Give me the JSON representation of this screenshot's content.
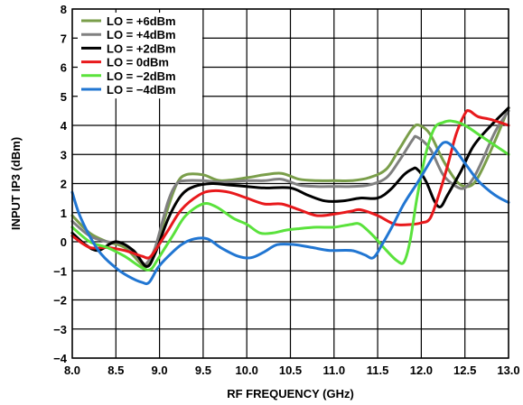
{
  "chart_data": {
    "type": "line",
    "title": "",
    "xlabel": "RF FREQUENCY (GHz)",
    "ylabel": "INPUT IP3 (dBm)",
    "xlim": [
      8.0,
      13.0
    ],
    "ylim": [
      -4,
      8
    ],
    "xticks": [
      "8.0",
      "8.5",
      "9.0",
      "9.5",
      "10.0",
      "10.5",
      "11.0",
      "11.5",
      "12.0",
      "12.5",
      "13.0"
    ],
    "yticks": [
      "−4",
      "−3",
      "−2",
      "−1",
      "0",
      "1",
      "2",
      "3",
      "4",
      "5",
      "6",
      "7",
      "8"
    ],
    "grid": true,
    "legend_position": "top-left",
    "series": [
      {
        "name": "LO = +6dBm",
        "color": "#7a9e4a",
        "points": [
          [
            8.0,
            0.9
          ],
          [
            8.2,
            0.3
          ],
          [
            8.4,
            0.0
          ],
          [
            8.6,
            -0.2
          ],
          [
            8.8,
            -0.8
          ],
          [
            8.85,
            -0.85
          ],
          [
            8.95,
            -0.3
          ],
          [
            9.1,
            1.2
          ],
          [
            9.2,
            2.0
          ],
          [
            9.3,
            2.3
          ],
          [
            9.5,
            2.3
          ],
          [
            9.7,
            2.1
          ],
          [
            10.0,
            2.2
          ],
          [
            10.2,
            2.3
          ],
          [
            10.4,
            2.35
          ],
          [
            10.6,
            2.15
          ],
          [
            10.8,
            2.1
          ],
          [
            11.0,
            2.1
          ],
          [
            11.2,
            2.1
          ],
          [
            11.4,
            2.2
          ],
          [
            11.6,
            2.5
          ],
          [
            11.75,
            3.2
          ],
          [
            11.9,
            3.9
          ],
          [
            11.98,
            4.0
          ],
          [
            12.1,
            3.7
          ],
          [
            12.25,
            2.8
          ],
          [
            12.4,
            2.1
          ],
          [
            12.5,
            1.9
          ],
          [
            12.6,
            2.0
          ],
          [
            12.7,
            2.5
          ],
          [
            12.85,
            3.5
          ],
          [
            13.0,
            4.6
          ]
        ]
      },
      {
        "name": "LO = +4dBm",
        "color": "#808080",
        "points": [
          [
            8.0,
            0.7
          ],
          [
            8.2,
            0.2
          ],
          [
            8.4,
            0.0
          ],
          [
            8.6,
            -0.1
          ],
          [
            8.8,
            -0.7
          ],
          [
            8.85,
            -0.75
          ],
          [
            8.95,
            -0.2
          ],
          [
            9.1,
            1.4
          ],
          [
            9.2,
            2.0
          ],
          [
            9.3,
            2.1
          ],
          [
            9.5,
            2.1
          ],
          [
            9.7,
            2.05
          ],
          [
            10.0,
            2.1
          ],
          [
            10.2,
            2.1
          ],
          [
            10.4,
            2.15
          ],
          [
            10.6,
            1.95
          ],
          [
            10.8,
            1.9
          ],
          [
            11.0,
            1.9
          ],
          [
            11.2,
            1.9
          ],
          [
            11.4,
            1.95
          ],
          [
            11.6,
            2.2
          ],
          [
            11.75,
            2.8
          ],
          [
            11.9,
            3.5
          ],
          [
            11.95,
            3.6
          ],
          [
            12.1,
            3.2
          ],
          [
            12.25,
            2.3
          ],
          [
            12.4,
            1.9
          ],
          [
            12.5,
            1.85
          ],
          [
            12.6,
            2.2
          ],
          [
            12.7,
            2.8
          ],
          [
            12.85,
            3.8
          ],
          [
            13.0,
            4.5
          ]
        ]
      },
      {
        "name": "LO = +2dBm",
        "color": "#000000",
        "points": [
          [
            8.0,
            0.3
          ],
          [
            8.15,
            -0.1
          ],
          [
            8.3,
            -0.3
          ],
          [
            8.5,
            0.0
          ],
          [
            8.7,
            -0.3
          ],
          [
            8.85,
            -0.85
          ],
          [
            8.95,
            -0.4
          ],
          [
            9.1,
            0.8
          ],
          [
            9.25,
            1.6
          ],
          [
            9.4,
            1.9
          ],
          [
            9.6,
            2.0
          ],
          [
            9.8,
            1.95
          ],
          [
            10.0,
            1.9
          ],
          [
            10.2,
            1.85
          ],
          [
            10.5,
            1.85
          ],
          [
            10.7,
            1.6
          ],
          [
            10.9,
            1.4
          ],
          [
            11.1,
            1.4
          ],
          [
            11.3,
            1.5
          ],
          [
            11.5,
            1.5
          ],
          [
            11.65,
            1.8
          ],
          [
            11.8,
            2.3
          ],
          [
            11.9,
            2.5
          ],
          [
            11.95,
            2.5
          ],
          [
            12.05,
            2.1
          ],
          [
            12.15,
            1.4
          ],
          [
            12.22,
            1.2
          ],
          [
            12.3,
            1.6
          ],
          [
            12.45,
            2.4
          ],
          [
            12.6,
            3.3
          ],
          [
            12.8,
            4.0
          ],
          [
            13.0,
            4.6
          ]
        ]
      },
      {
        "name": "LO = 0dBm",
        "color": "#e8191c",
        "points": [
          [
            8.0,
            0.2
          ],
          [
            8.2,
            -0.2
          ],
          [
            8.4,
            -0.2
          ],
          [
            8.6,
            -0.3
          ],
          [
            8.8,
            -0.5
          ],
          [
            8.88,
            -0.55
          ],
          [
            8.95,
            -0.3
          ],
          [
            9.1,
            0.4
          ],
          [
            9.25,
            1.1
          ],
          [
            9.45,
            1.6
          ],
          [
            9.6,
            1.75
          ],
          [
            9.8,
            1.7
          ],
          [
            10.0,
            1.5
          ],
          [
            10.2,
            1.3
          ],
          [
            10.4,
            1.3
          ],
          [
            10.6,
            1.1
          ],
          [
            10.8,
            0.9
          ],
          [
            11.0,
            0.95
          ],
          [
            11.2,
            1.05
          ],
          [
            11.3,
            1.1
          ],
          [
            11.5,
            0.9
          ],
          [
            11.7,
            0.6
          ],
          [
            11.9,
            0.6
          ],
          [
            12.0,
            0.65
          ],
          [
            12.1,
            0.8
          ],
          [
            12.2,
            1.6
          ],
          [
            12.3,
            2.6
          ],
          [
            12.4,
            3.7
          ],
          [
            12.5,
            4.4
          ],
          [
            12.55,
            4.5
          ],
          [
            12.65,
            4.3
          ],
          [
            12.8,
            4.2
          ],
          [
            13.0,
            4.0
          ]
        ]
      },
      {
        "name": "LO = −2dBm",
        "color": "#5ae23c",
        "points": [
          [
            8.0,
            0.5
          ],
          [
            8.2,
            0.0
          ],
          [
            8.4,
            -0.2
          ],
          [
            8.6,
            -0.5
          ],
          [
            8.8,
            -0.9
          ],
          [
            8.9,
            -0.95
          ],
          [
            8.98,
            -0.6
          ],
          [
            9.15,
            0.2
          ],
          [
            9.3,
            0.9
          ],
          [
            9.5,
            1.3
          ],
          [
            9.65,
            1.2
          ],
          [
            9.85,
            0.8
          ],
          [
            10.0,
            0.6
          ],
          [
            10.15,
            0.3
          ],
          [
            10.3,
            0.3
          ],
          [
            10.45,
            0.4
          ],
          [
            10.6,
            0.45
          ],
          [
            10.8,
            0.5
          ],
          [
            11.0,
            0.5
          ],
          [
            11.2,
            0.6
          ],
          [
            11.3,
            0.6
          ],
          [
            11.45,
            0.2
          ],
          [
            11.6,
            -0.3
          ],
          [
            11.72,
            -0.65
          ],
          [
            11.8,
            -0.7
          ],
          [
            11.87,
            0.0
          ],
          [
            11.95,
            1.5
          ],
          [
            12.05,
            3.0
          ],
          [
            12.15,
            3.9
          ],
          [
            12.25,
            4.1
          ],
          [
            12.35,
            4.15
          ],
          [
            12.5,
            4.0
          ],
          [
            12.7,
            3.6
          ],
          [
            12.9,
            3.2
          ],
          [
            13.0,
            3.0
          ]
        ]
      },
      {
        "name": "LO = −4dBm",
        "color": "#2176d2",
        "points": [
          [
            8.0,
            1.7
          ],
          [
            8.1,
            0.8
          ],
          [
            8.3,
            -0.3
          ],
          [
            8.5,
            -0.9
          ],
          [
            8.65,
            -1.2
          ],
          [
            8.8,
            -1.4
          ],
          [
            8.88,
            -1.4
          ],
          [
            8.98,
            -0.9
          ],
          [
            9.1,
            -0.5
          ],
          [
            9.25,
            -0.1
          ],
          [
            9.4,
            0.1
          ],
          [
            9.55,
            0.1
          ],
          [
            9.7,
            -0.2
          ],
          [
            9.9,
            -0.5
          ],
          [
            10.05,
            -0.55
          ],
          [
            10.2,
            -0.35
          ],
          [
            10.35,
            -0.1
          ],
          [
            10.55,
            -0.1
          ],
          [
            10.75,
            -0.2
          ],
          [
            10.95,
            -0.3
          ],
          [
            11.2,
            -0.3
          ],
          [
            11.35,
            -0.45
          ],
          [
            11.45,
            -0.55
          ],
          [
            11.55,
            -0.1
          ],
          [
            11.68,
            0.6
          ],
          [
            11.8,
            1.3
          ],
          [
            11.95,
            2.0
          ],
          [
            12.05,
            2.5
          ],
          [
            12.15,
            3.0
          ],
          [
            12.25,
            3.4
          ],
          [
            12.35,
            3.3
          ],
          [
            12.5,
            2.7
          ],
          [
            12.65,
            2.1
          ],
          [
            12.8,
            1.7
          ],
          [
            12.9,
            1.5
          ],
          [
            13.0,
            1.35
          ]
        ]
      }
    ]
  }
}
